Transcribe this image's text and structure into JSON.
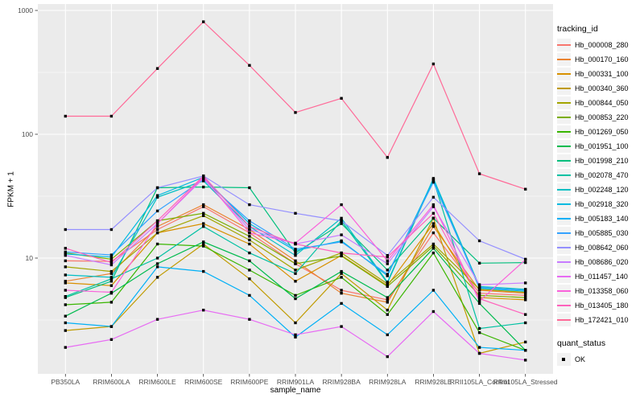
{
  "chart_data": {
    "type": "line",
    "xlabel": "sample_name",
    "ylabel": "FPKM + 1",
    "y_scale": "log10",
    "y_ticks": [
      10,
      100,
      1000
    ],
    "y_minor_breaks": [
      3.162,
      31.623,
      316.228
    ],
    "grid": true,
    "panel_bg": "#EBEBEB",
    "grid_color": "#FFFFFF",
    "tick_color": "#333333",
    "tick_label_color": "#4D4D4D",
    "point_shape": "filled-square",
    "point_color": "#000000",
    "legend_position": "right",
    "categories": [
      "PB350LA",
      "RRIM600LA",
      "RRIM600LE",
      "RRIM600SE",
      "RRIM600PE",
      "RRIM901LA",
      "RRIM928BA",
      "RRIM928LA",
      "RRIM928LE",
      "RRII105LA_Control",
      "RRII105LA_Stressed"
    ],
    "legend": {
      "title": "tracking_id"
    },
    "legend2": {
      "title": "quant_status",
      "items": [
        {
          "label": "OK",
          "shape": "filled-square",
          "color": "#000000"
        }
      ]
    },
    "series": [
      {
        "name": "Hb_000008_280",
        "color": "#F8766D",
        "values": [
          9.5,
          9.4,
          17,
          26,
          16,
          9.0,
          5.5,
          4.6,
          16,
          5.2,
          5.0
        ]
      },
      {
        "name": "Hb_000170_160",
        "color": "#EA8331",
        "values": [
          6.5,
          7.5,
          18,
          27,
          17,
          9.5,
          5.2,
          4.4,
          18,
          5.5,
          5.2
        ]
      },
      {
        "name": "Hb_000331_100",
        "color": "#D89000",
        "values": [
          6.3,
          6.0,
          16,
          19,
          13,
          6.5,
          10.5,
          6.0,
          19,
          4.8,
          4.6
        ]
      },
      {
        "name": "Hb_000340_360",
        "color": "#C09B00",
        "values": [
          2.6,
          2.8,
          7.0,
          13,
          6.8,
          3.0,
          7.5,
          3.8,
          21,
          1.7,
          2.1
        ]
      },
      {
        "name": "Hb_000844_050",
        "color": "#A3A500",
        "values": [
          8.5,
          7.8,
          16,
          22,
          14,
          8.0,
          11,
          6.2,
          13,
          5.6,
          5.3
        ]
      },
      {
        "name": "Hb_000853_220",
        "color": "#7CAE00",
        "values": [
          11,
          9.8,
          20,
          23,
          15,
          9.0,
          10.4,
          5.9,
          12.5,
          5.0,
          4.8
        ]
      },
      {
        "name": "Hb_001269_050",
        "color": "#39B600",
        "values": [
          4.2,
          4.4,
          13,
          12.5,
          8.0,
          5.0,
          7.0,
          3.5,
          11,
          2.5,
          1.8
        ]
      },
      {
        "name": "Hb_001951_100",
        "color": "#00BB4E",
        "values": [
          3.4,
          5.2,
          9.0,
          13.5,
          9.5,
          4.7,
          7.8,
          4.8,
          12,
          4.3,
          1.8
        ]
      },
      {
        "name": "Hb_001998_210",
        "color": "#00BF7D",
        "values": [
          4.8,
          6.5,
          37,
          37.5,
          37,
          11,
          19,
          8.0,
          21,
          9.1,
          9.2
        ]
      },
      {
        "name": "Hb_002078_470",
        "color": "#00C1A3",
        "values": [
          4.9,
          6.8,
          10,
          18,
          11,
          7.5,
          20,
          6.3,
          43,
          2.7,
          3.0
        ]
      },
      {
        "name": "Hb_002248_120",
        "color": "#00BFC4",
        "values": [
          7.3,
          7.0,
          31,
          42,
          18,
          10.5,
          21,
          6.4,
          44,
          5.9,
          5.6
        ]
      },
      {
        "name": "Hb_002918_320",
        "color": "#00BAE0",
        "values": [
          10.8,
          10.2,
          32,
          45,
          19,
          11.5,
          13.8,
          7.2,
          43,
          5.7,
          5.4
        ]
      },
      {
        "name": "Hb_005183_140",
        "color": "#00B0F6",
        "values": [
          3.0,
          2.8,
          8.5,
          7.8,
          5.0,
          2.3,
          4.3,
          2.4,
          5.5,
          1.9,
          1.8
        ]
      },
      {
        "name": "Hb_005885_030",
        "color": "#35A2FF",
        "values": [
          11.2,
          10.6,
          24,
          43,
          20,
          11.8,
          13.5,
          7.4,
          41,
          5.8,
          5.5
        ]
      },
      {
        "name": "Hb_008642_060",
        "color": "#9590FF",
        "values": [
          17,
          17,
          37,
          46,
          27,
          23,
          20,
          10.5,
          31,
          13.8,
          9.8
        ]
      },
      {
        "name": "Hb_008686_020",
        "color": "#C77CFF",
        "values": [
          10.5,
          8.8,
          19,
          44,
          17,
          13,
          15.4,
          9.0,
          26,
          6.1,
          6.3
        ]
      },
      {
        "name": "Hb_011457_140",
        "color": "#E76BF3",
        "values": [
          1.9,
          2.2,
          3.2,
          3.8,
          3.2,
          2.4,
          2.8,
          1.6,
          3.7,
          1.7,
          1.5
        ]
      },
      {
        "name": "Hb_013358_060",
        "color": "#FA62DB",
        "values": [
          5.5,
          5.3,
          19,
          45,
          16,
          13.2,
          27,
          9.5,
          27,
          4.5,
          9.7
        ]
      },
      {
        "name": "Hb_013405_180",
        "color": "#FF62BC",
        "values": [
          12,
          9.2,
          20,
          46,
          18,
          13,
          11,
          10.2,
          23,
          4.7,
          3.5
        ]
      },
      {
        "name": "Hb_172421_010",
        "color": "#FF6A98",
        "values": [
          140,
          140,
          340,
          810,
          360,
          150,
          195,
          65,
          370,
          48,
          36
        ]
      }
    ]
  }
}
